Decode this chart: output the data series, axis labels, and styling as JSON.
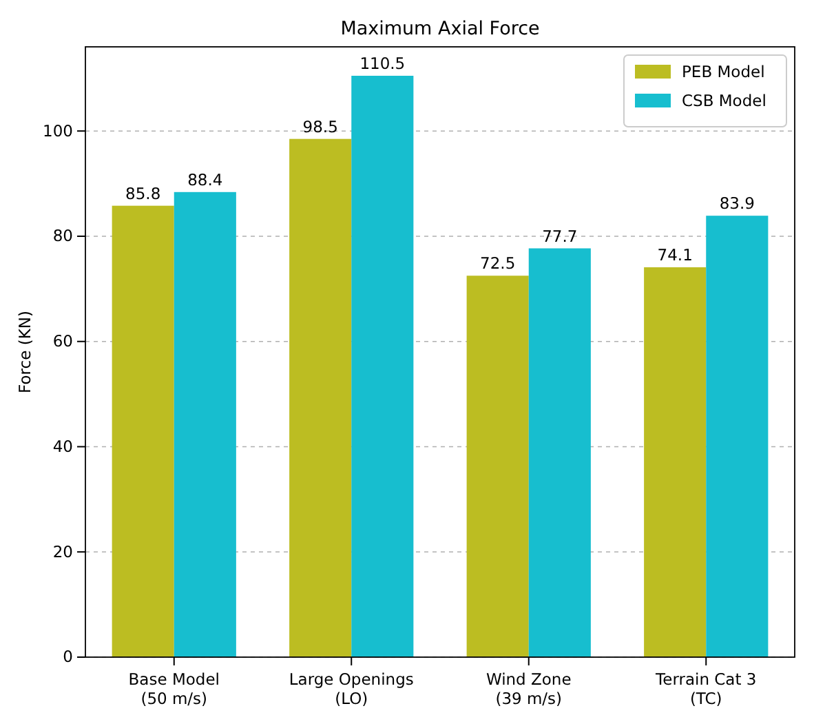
{
  "chart_data": {
    "type": "bar",
    "title": "Maximum Axial Force",
    "ylabel": "Force (KN)",
    "categories": [
      "Base Model\n(50 m/s)",
      "Large Openings\n(LO)",
      "Wind Zone\n(39 m/s)",
      "Terrain Cat 3\n(TC)"
    ],
    "series": [
      {
        "name": "PEB Model",
        "color": "#bcbd22",
        "values": [
          85.8,
          98.5,
          72.5,
          74.1
        ]
      },
      {
        "name": "CSB Model",
        "color": "#17becf",
        "values": [
          88.4,
          110.5,
          77.7,
          83.9
        ]
      }
    ],
    "ylim": [
      0,
      116
    ],
    "yticks": [
      0,
      20,
      40,
      60,
      80,
      100
    ],
    "grid": "y",
    "legend": "top right",
    "data_labels": true
  }
}
